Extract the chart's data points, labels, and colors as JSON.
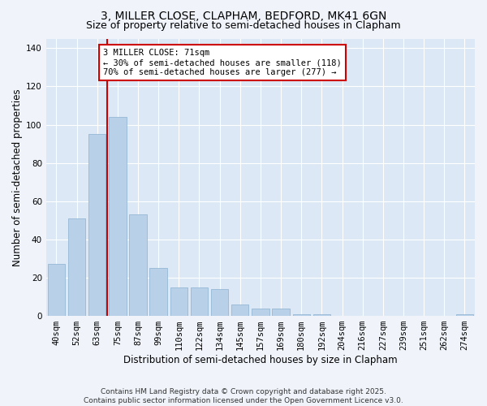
{
  "title_line1": "3, MILLER CLOSE, CLAPHAM, BEDFORD, MK41 6GN",
  "title_line2": "Size of property relative to semi-detached houses in Clapham",
  "xlabel": "Distribution of semi-detached houses by size in Clapham",
  "ylabel": "Number of semi-detached properties",
  "categories": [
    "40sqm",
    "52sqm",
    "63sqm",
    "75sqm",
    "87sqm",
    "99sqm",
    "110sqm",
    "122sqm",
    "134sqm",
    "145sqm",
    "157sqm",
    "169sqm",
    "180sqm",
    "192sqm",
    "204sqm",
    "216sqm",
    "227sqm",
    "239sqm",
    "251sqm",
    "262sqm",
    "274sqm"
  ],
  "values": [
    27,
    51,
    95,
    104,
    53,
    25,
    15,
    15,
    14,
    6,
    4,
    4,
    1,
    1,
    0,
    0,
    0,
    0,
    0,
    0,
    1
  ],
  "bar_color": "#b8d0e8",
  "bar_edge_color": "#8ab0d0",
  "vline_x_index": 3,
  "vline_color": "#cc0000",
  "annotation_text": "3 MILLER CLOSE: 71sqm\n← 30% of semi-detached houses are smaller (118)\n70% of semi-detached houses are larger (277) →",
  "annotation_box_facecolor": "#ffffff",
  "annotation_box_edgecolor": "#cc0000",
  "ylim": [
    0,
    145
  ],
  "yticks": [
    0,
    20,
    40,
    60,
    80,
    100,
    120,
    140
  ],
  "footnote": "Contains HM Land Registry data © Crown copyright and database right 2025.\nContains public sector information licensed under the Open Government Licence v3.0.",
  "fig_bg_color": "#f0f4fa",
  "plot_bg_color": "#dce8f5",
  "grid_color": "#ffffff",
  "title_fontsize": 10,
  "subtitle_fontsize": 9,
  "axis_label_fontsize": 8.5,
  "tick_fontsize": 7.5,
  "annotation_fontsize": 7.5,
  "footnote_fontsize": 6.5
}
